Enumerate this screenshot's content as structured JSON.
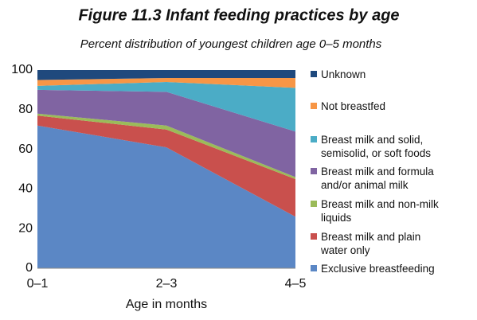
{
  "chart_data": {
    "type": "stacked_area",
    "title": "Figure 11.3  Infant feeding practices by age",
    "subtitle": "Percent distribution of youngest children age 0–5 months",
    "x_label": "Age in months",
    "categories": [
      "0–1",
      "2–3",
      "4–5"
    ],
    "series": [
      {
        "name": "Exclusive breastfeeding",
        "color": "#5b87c5",
        "values": [
          72,
          61,
          26
        ]
      },
      {
        "name": "Breast milk and plain water only",
        "color": "#c9504d",
        "values": [
          5,
          9,
          19
        ]
      },
      {
        "name": "Breast milk and non-milk liquids",
        "color": "#9bbb59",
        "values": [
          1,
          2,
          1
        ]
      },
      {
        "name": "Breast milk and formula and/or animal milk",
        "color": "#8064a2",
        "values": [
          12,
          17,
          23
        ]
      },
      {
        "name": "Breast milk and solid, semisolid, or soft foods",
        "color": "#4bacc6",
        "values": [
          2,
          5,
          22
        ]
      },
      {
        "name": "Not breastfed",
        "color": "#f79646",
        "values": [
          3,
          2,
          5
        ]
      },
      {
        "name": "Unknown",
        "color": "#1f497d",
        "values": [
          5,
          4,
          4
        ]
      }
    ],
    "ylim": [
      0,
      100
    ],
    "yticks": [
      0,
      20,
      40,
      60,
      80,
      100
    ],
    "grid": false
  }
}
